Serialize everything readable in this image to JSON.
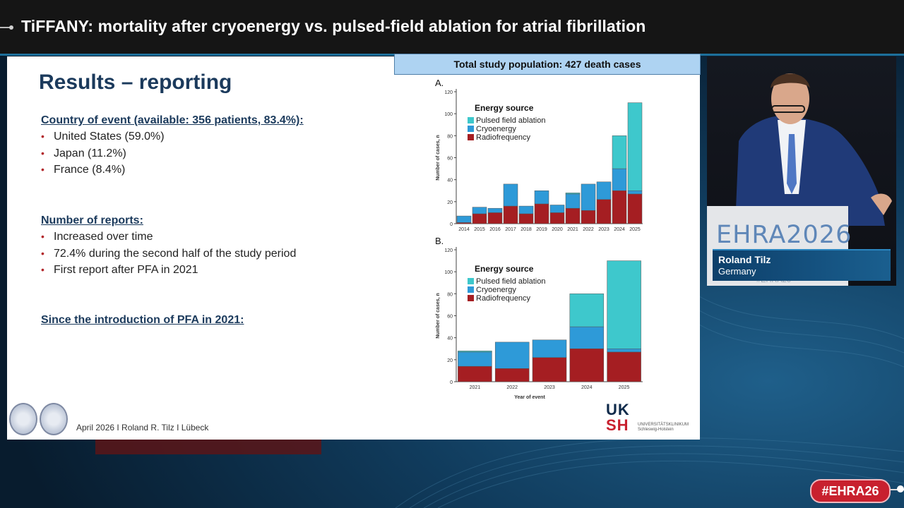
{
  "header": {
    "title": "TiFFANY: mortality after cryoenergy vs. pulsed-field ablation for atrial fibrillation"
  },
  "slide": {
    "title": "Results – reporting",
    "sections": [
      {
        "heading": "Country of event (available: 356 patients, 83.4%):",
        "bullets": [
          "United States (59.0%)",
          "Japan (11.2%)",
          "France (8.4%)"
        ]
      },
      {
        "heading": "Number of reports:",
        "bullets": [
          "Increased over time",
          "72.4% during the second half of the study period",
          "First report after PFA in 2021"
        ]
      },
      {
        "heading": "Since the introduction of PFA in 2021:",
        "bullets": []
      }
    ],
    "study_box": "Total study population: 427 death cases",
    "footer": "April 2026 I Roland R. Tilz I Lübeck",
    "logo": {
      "uk": "UK",
      "sh": "SH",
      "subtitle": "UNIVERSITÄTSKLINIKUM Schleswig-Holstein"
    }
  },
  "colors": {
    "pfa": "#3ec8cc",
    "cryo": "#2e9ad8",
    "rf": "#a51e22",
    "accent": "#1b3a5c"
  },
  "chart_data": [
    {
      "type": "bar",
      "panel": "A.",
      "stacked": true,
      "categories": [
        "2014",
        "2015",
        "2016",
        "2017",
        "2018",
        "2019",
        "2020",
        "2021",
        "2022",
        "2023",
        "2024",
        "2025"
      ],
      "series": [
        {
          "name": "Radiofrequency",
          "values": [
            1,
            9,
            10,
            16,
            9,
            18,
            10,
            14,
            12,
            22,
            30,
            27
          ]
        },
        {
          "name": "Cryoenergy",
          "values": [
            6,
            6,
            4,
            20,
            7,
            12,
            7,
            13,
            24,
            16,
            20,
            3
          ]
        },
        {
          "name": "Pulsed field ablation",
          "values": [
            0,
            0,
            0,
            0,
            0,
            0,
            0,
            1,
            0,
            0,
            30,
            80
          ]
        }
      ],
      "legend_title": "Energy source",
      "legend_order": [
        "Pulsed field ablation",
        "Cryoenergy",
        "Radiofrequency"
      ],
      "ylabel": "Number of cases, n",
      "xlabel": "",
      "ylim": [
        0,
        120
      ],
      "yticks": [
        0,
        20,
        40,
        60,
        80,
        100,
        120
      ],
      "legend": "top-left"
    },
    {
      "type": "bar",
      "panel": "B.",
      "stacked": true,
      "categories": [
        "2021",
        "2022",
        "2023",
        "2024",
        "2025"
      ],
      "series": [
        {
          "name": "Radiofrequency",
          "values": [
            14,
            12,
            22,
            30,
            27
          ]
        },
        {
          "name": "Cryoenergy",
          "values": [
            13,
            24,
            16,
            20,
            3
          ]
        },
        {
          "name": "Pulsed field ablation",
          "values": [
            1,
            0,
            0,
            30,
            80
          ]
        }
      ],
      "legend_title": "Energy source",
      "legend_order": [
        "Pulsed field ablation",
        "Cryoenergy",
        "Radiofrequency"
      ],
      "ylabel": "Number of cases, n",
      "xlabel": "Year of event",
      "ylim": [
        0,
        120
      ],
      "yticks": [
        0,
        20,
        40,
        60,
        80,
        100,
        120
      ],
      "legend": "top-left"
    }
  ],
  "speaker": {
    "podium_brand": "EHRA2026",
    "podium_tag": "#EHRA26",
    "name": "Roland Tilz",
    "country": "Germany"
  },
  "hashtag": "#EHRA26"
}
